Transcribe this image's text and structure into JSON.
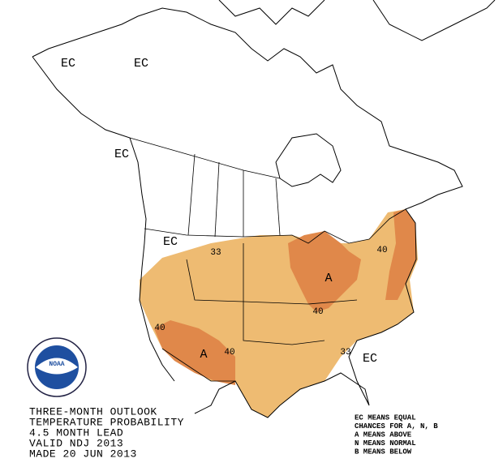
{
  "labels": {
    "ec": [
      "EC",
      "EC",
      "EC",
      "EC",
      "EC"
    ],
    "contours": [
      "33",
      "33",
      "40",
      "40",
      "40",
      "40"
    ],
    "anomalies": [
      "A",
      "A"
    ]
  },
  "logo": "NOAA",
  "title": {
    "lines": [
      "THREE-MONTH OUTLOOK",
      "TEMPERATURE PROBABILITY",
      "4.5 MONTH LEAD",
      "VALID NDJ 2013",
      "MADE 20 JUN 2013"
    ]
  },
  "legend": {
    "lines": [
      "EC MEANS EQUAL",
      "CHANCES FOR A, N, B",
      "A MEANS ABOVE",
      "N MEANS NORMAL",
      "B MEANS BELOW"
    ]
  }
}
